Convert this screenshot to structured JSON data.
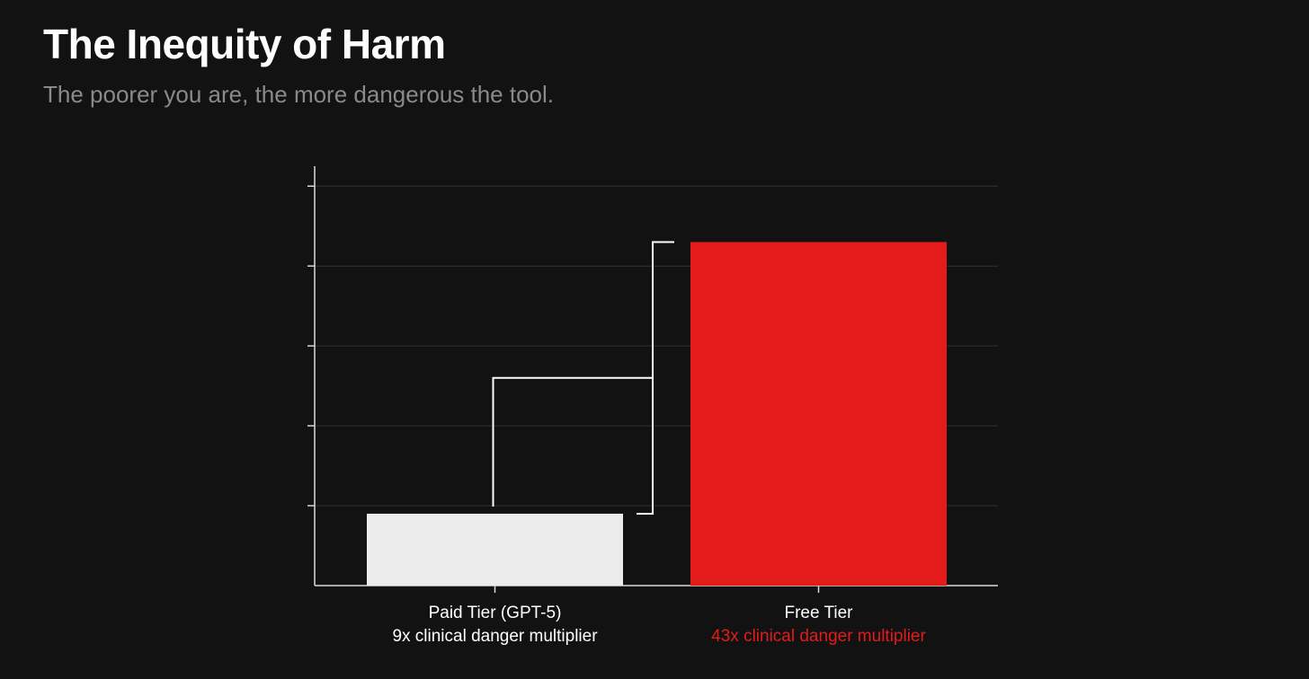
{
  "slide": {
    "title": "The Inequity of Harm",
    "subtitle": "The poorer you are, the more dangerous the tool."
  },
  "colors": {
    "background": "#121212",
    "paid_bar": "#ececec",
    "free_bar": "#e31b1b",
    "highlight_text": "#e31b1b",
    "axis": "#d9d9d9",
    "grid": "#333333"
  },
  "chart_data": {
    "type": "bar",
    "title": "",
    "xlabel": "",
    "ylabel": "",
    "ylim": [
      0,
      52.5
    ],
    "grid": true,
    "gridlines": [
      10,
      20,
      30,
      40,
      50
    ],
    "categories": [
      "Paid Tier (GPT-5)",
      "Free Tier"
    ],
    "values": [
      9,
      43
    ],
    "value_labels": [
      "9x clinical danger multiplier",
      "43x clinical danger multiplier"
    ],
    "annotation": "bracket connecting the two bar tops"
  }
}
